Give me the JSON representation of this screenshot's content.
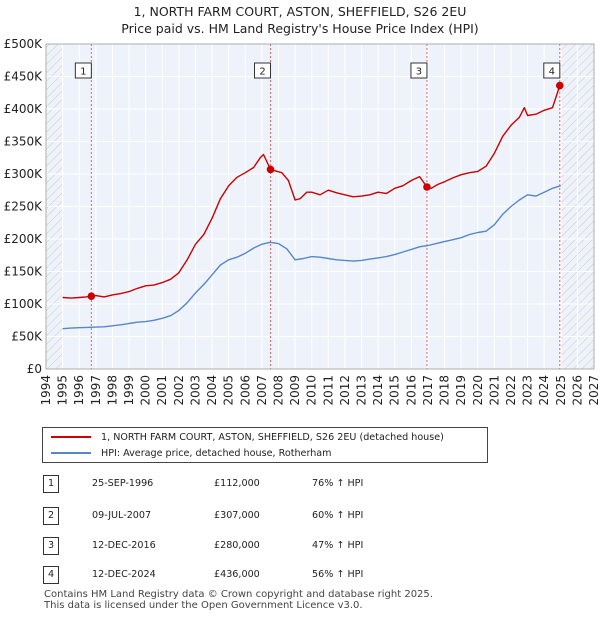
{
  "title_line1": "1, NORTH FARM COURT, ASTON, SHEFFIELD, S26 2EU",
  "title_line2": "Price paid vs. HM Land Registry's House Price Index (HPI)",
  "chart_data": {
    "type": "line",
    "xlim": [
      1994,
      2027
    ],
    "ylim": [
      0,
      500000
    ],
    "x_ticks": [
      1994,
      1995,
      1996,
      1997,
      1998,
      1999,
      2000,
      2001,
      2002,
      2003,
      2004,
      2005,
      2006,
      2007,
      2008,
      2009,
      2010,
      2011,
      2012,
      2013,
      2014,
      2015,
      2016,
      2017,
      2018,
      2019,
      2020,
      2021,
      2022,
      2023,
      2024,
      2025,
      2026,
      2027
    ],
    "y_ticks": [
      {
        "value": 0,
        "label": "£0"
      },
      {
        "value": 50000,
        "label": "£50K"
      },
      {
        "value": 100000,
        "label": "£100K"
      },
      {
        "value": 150000,
        "label": "£150K"
      },
      {
        "value": 200000,
        "label": "£200K"
      },
      {
        "value": 250000,
        "label": "£250K"
      },
      {
        "value": 300000,
        "label": "£300K"
      },
      {
        "value": 350000,
        "label": "£350K"
      },
      {
        "value": 400000,
        "label": "£400K"
      },
      {
        "value": 450000,
        "label": "£450K"
      },
      {
        "value": 500000,
        "label": "£500K"
      }
    ],
    "hatch_before": 1995.0,
    "hatch_after": 2025.0,
    "series": [
      {
        "name": "1, NORTH FARM COURT, ASTON, SHEFFIELD, S26 2EU (detached house)",
        "color": "#cc0000",
        "x": [
          1995.0,
          1995.5,
          1996.0,
          1996.4,
          1996.73,
          1997.0,
          1997.5,
          1998.0,
          1998.5,
          1999.0,
          1999.5,
          2000.0,
          2000.5,
          2001.0,
          2001.5,
          2002.0,
          2002.5,
          2003.0,
          2003.5,
          2004.0,
          2004.5,
          2005.0,
          2005.5,
          2006.0,
          2006.5,
          2006.9,
          2007.1,
          2007.52,
          2007.8,
          2008.2,
          2008.6,
          2009.0,
          2009.3,
          2009.7,
          2010.0,
          2010.5,
          2011.0,
          2011.5,
          2012.0,
          2012.5,
          2013.0,
          2013.5,
          2014.0,
          2014.5,
          2015.0,
          2015.5,
          2016.0,
          2016.5,
          2016.94,
          2017.2,
          2017.6,
          2018.0,
          2018.5,
          2019.0,
          2019.5,
          2020.0,
          2020.5,
          2021.0,
          2021.5,
          2022.0,
          2022.5,
          2022.8,
          2023.0,
          2023.5,
          2024.0,
          2024.5,
          2024.94,
          2025.1
        ],
        "values": [
          110000,
          109000,
          110000,
          111000,
          112000,
          113000,
          111000,
          114000,
          116000,
          119000,
          124000,
          128000,
          129000,
          133000,
          138000,
          148000,
          168000,
          192000,
          207000,
          232000,
          262000,
          282000,
          295000,
          302000,
          310000,
          325000,
          330000,
          307000,
          305000,
          302000,
          290000,
          260000,
          262000,
          272000,
          272000,
          268000,
          275000,
          271000,
          268000,
          265000,
          266000,
          268000,
          272000,
          270000,
          278000,
          282000,
          290000,
          296000,
          280000,
          278000,
          284000,
          288000,
          294000,
          299000,
          302000,
          304000,
          312000,
          332000,
          358000,
          375000,
          387000,
          402000,
          390000,
          392000,
          398000,
          402000,
          436000,
          440000
        ]
      },
      {
        "name": "HPI: Average price, detached house, Rotherham",
        "color": "#5588c8",
        "x": [
          1995.0,
          1995.5,
          1996.0,
          1996.5,
          1997.0,
          1997.5,
          1998.0,
          1998.5,
          1999.0,
          1999.5,
          2000.0,
          2000.5,
          2001.0,
          2001.5,
          2002.0,
          2002.5,
          2003.0,
          2003.5,
          2004.0,
          2004.5,
          2005.0,
          2005.5,
          2006.0,
          2006.5,
          2007.0,
          2007.5,
          2008.0,
          2008.5,
          2009.0,
          2009.5,
          2010.0,
          2010.5,
          2011.0,
          2011.5,
          2012.0,
          2012.5,
          2013.0,
          2013.5,
          2014.0,
          2014.5,
          2015.0,
          2015.5,
          2016.0,
          2016.5,
          2017.0,
          2017.5,
          2018.0,
          2018.5,
          2019.0,
          2019.5,
          2020.0,
          2020.5,
          2021.0,
          2021.5,
          2022.0,
          2022.5,
          2023.0,
          2023.5,
          2024.0,
          2024.5,
          2025.0
        ],
        "values": [
          62000,
          63000,
          63500,
          64000,
          64500,
          65000,
          66500,
          68000,
          70000,
          72000,
          73000,
          75000,
          78000,
          82000,
          90000,
          102000,
          117000,
          130000,
          145000,
          160000,
          168000,
          172000,
          178000,
          186000,
          192000,
          195000,
          193000,
          185000,
          168000,
          170000,
          173000,
          172000,
          170000,
          168000,
          167000,
          166000,
          167000,
          169000,
          171000,
          173000,
          176000,
          180000,
          184000,
          188000,
          190000,
          193000,
          196000,
          199000,
          202000,
          207000,
          210000,
          212000,
          222000,
          238000,
          250000,
          260000,
          268000,
          266000,
          272000,
          278000,
          282000
        ]
      }
    ],
    "markers": [
      {
        "label": "1",
        "x": 1996.73,
        "value": 112000
      },
      {
        "label": "2",
        "x": 2007.52,
        "value": 307000
      },
      {
        "label": "3",
        "x": 2016.94,
        "value": 280000
      },
      {
        "label": "4",
        "x": 2024.94,
        "value": 436000
      }
    ]
  },
  "legend": {
    "property_label": "1, NORTH FARM COURT, ASTON, SHEFFIELD, S26 2EU (detached house)",
    "hpi_label": "HPI: Average price, detached house, Rotherham",
    "property_color": "#cc0000",
    "hpi_color": "#5588c8"
  },
  "transactions": [
    {
      "num": "1",
      "date": "25-SEP-1996",
      "price": "£112,000",
      "hpi": "76% ↑ HPI"
    },
    {
      "num": "2",
      "date": "09-JUL-2007",
      "price": "£307,000",
      "hpi": "60% ↑ HPI"
    },
    {
      "num": "3",
      "date": "12-DEC-2016",
      "price": "£280,000",
      "hpi": "47% ↑ HPI"
    },
    {
      "num": "4",
      "date": "12-DEC-2024",
      "price": "£436,000",
      "hpi": "56% ↑ HPI"
    }
  ],
  "footer_line1": "Contains HM Land Registry data © Crown copyright and database right 2025.",
  "footer_line2": "This data is licensed under the Open Government Licence v3.0."
}
